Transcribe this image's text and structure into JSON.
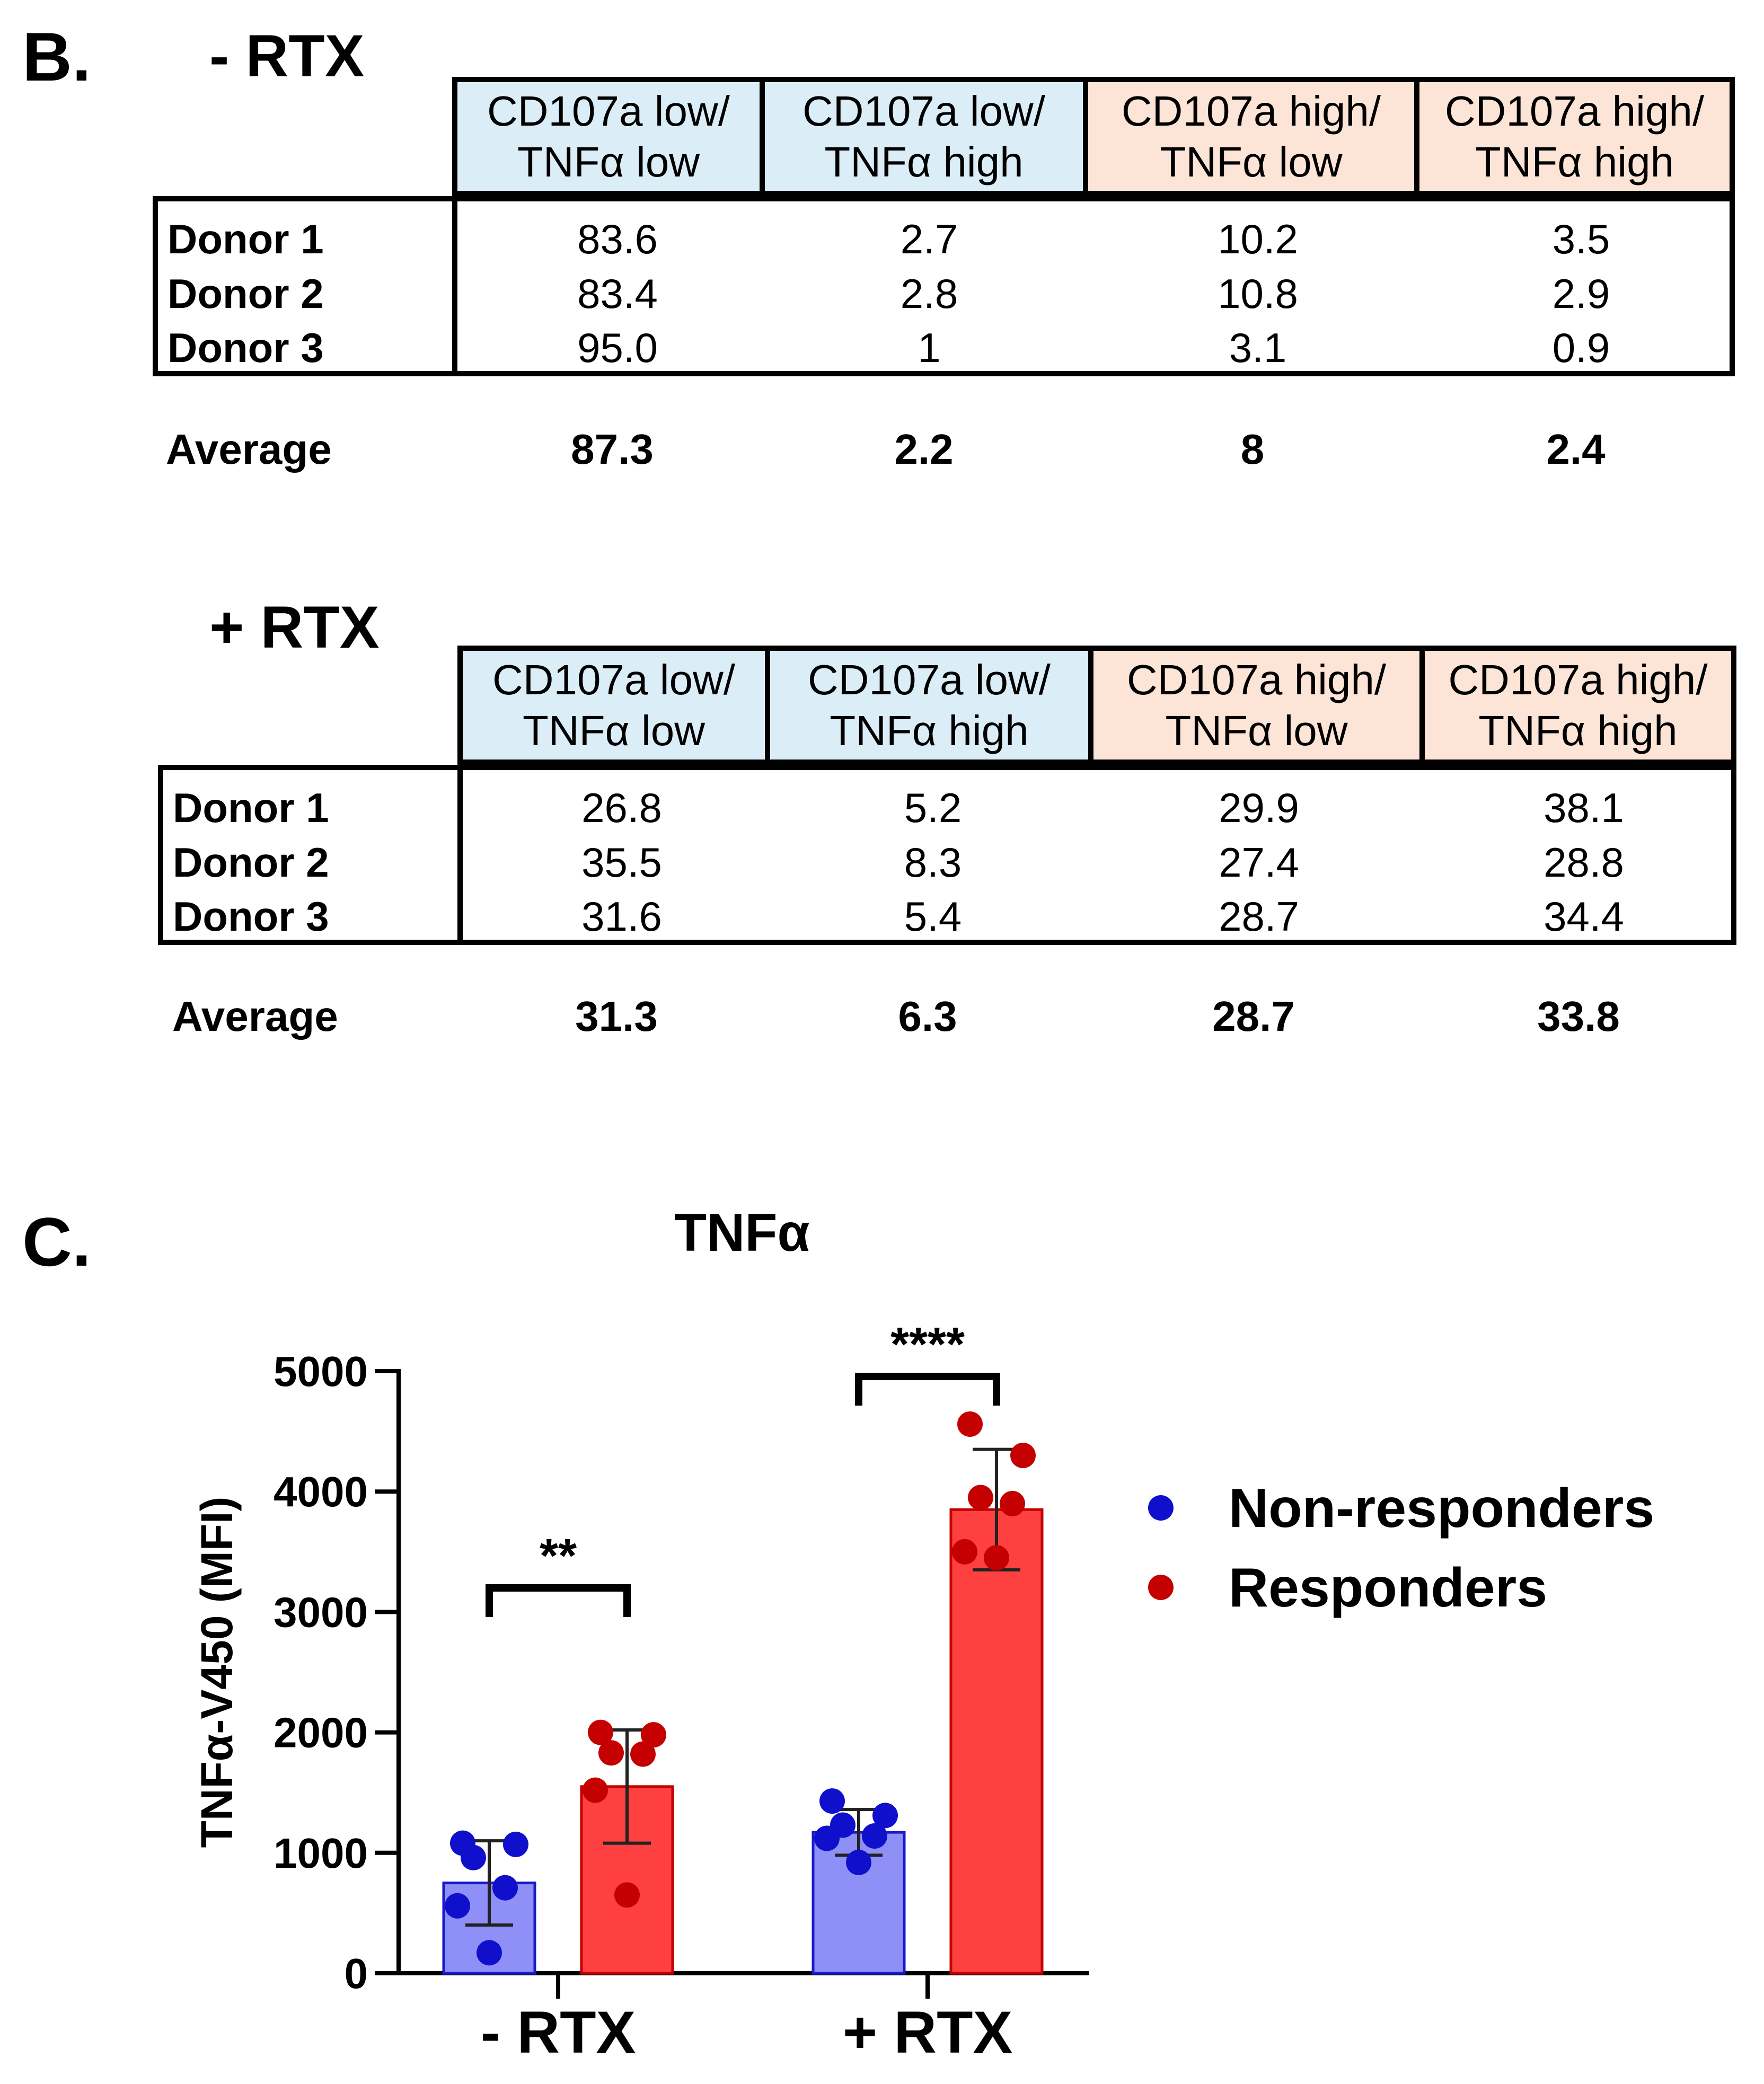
{
  "panels": {
    "b_label": "B.",
    "c_label": "C."
  },
  "tables": [
    {
      "title": "- RTX",
      "headers": [
        {
          "line1": "CD107a low/",
          "line2": "TNFα low"
        },
        {
          "line1": "CD107a low/",
          "line2": "TNFα high"
        },
        {
          "line1": "CD107a high/",
          "line2": "TNFα low"
        },
        {
          "line1": "CD107a high/",
          "line2": "TNFα high"
        }
      ],
      "rows": [
        {
          "label": "Donor 1",
          "values": [
            "83.6",
            "2.7",
            "10.2",
            "3.5"
          ]
        },
        {
          "label": "Donor 2",
          "values": [
            "83.4",
            "2.8",
            "10.8",
            "2.9"
          ]
        },
        {
          "label": "Donor 3",
          "values": [
            "95.0",
            "1",
            "3.1",
            "0.9"
          ]
        }
      ],
      "average": {
        "label": "Average",
        "values": [
          "87.3",
          "2.2",
          "8",
          "2.4"
        ]
      }
    },
    {
      "title": "+ RTX",
      "headers": [
        {
          "line1": "CD107a low/",
          "line2": "TNFα low"
        },
        {
          "line1": "CD107a low/",
          "line2": "TNFα high"
        },
        {
          "line1": "CD107a high/",
          "line2": "TNFα low"
        },
        {
          "line1": "CD107a high/",
          "line2": "TNFα high"
        }
      ],
      "rows": [
        {
          "label": "Donor 1",
          "values": [
            "26.8",
            "5.2",
            "29.9",
            "38.1"
          ]
        },
        {
          "label": "Donor 2",
          "values": [
            "35.5",
            "8.3",
            "27.4",
            "28.8"
          ]
        },
        {
          "label": "Donor 3",
          "values": [
            "31.6",
            "5.4",
            "28.7",
            "34.4"
          ]
        }
      ],
      "average": {
        "label": "Average",
        "values": [
          "31.3",
          "6.3",
          "28.7",
          "33.8"
        ]
      }
    }
  ],
  "colors": {
    "header_blue": "#dbeef7",
    "header_peach": "#fce4d6",
    "nonresponder_bar": "#8f8ff8",
    "nonresponder_dot": "#1010cc",
    "responder_bar": "#ff4040",
    "responder_dot": "#c40000"
  },
  "chart_data": {
    "type": "bar",
    "title": "TNFα",
    "ylabel": "TNFα-V450 (MFI)",
    "xlabel": "",
    "ylim": [
      0,
      5000
    ],
    "yticks": [
      0,
      1000,
      2000,
      3000,
      4000,
      5000
    ],
    "categories": [
      "- RTX",
      "+ RTX"
    ],
    "series": [
      {
        "name": "Non-responders",
        "values": [
          750,
          1170
        ],
        "sd": [
          350,
          190
        ],
        "points": [
          [
            1080,
            1070,
            960,
            710,
            560,
            170
          ],
          [
            1430,
            1310,
            1230,
            1140,
            1120,
            920
          ]
        ]
      },
      {
        "name": "Responders",
        "values": [
          1550,
          3850
        ],
        "sd": [
          470,
          500
        ],
        "points": [
          [
            2000,
            1980,
            1830,
            1820,
            1520,
            650
          ],
          [
            4560,
            4300,
            3950,
            3900,
            3500,
            3450
          ]
        ]
      }
    ],
    "significance": [
      {
        "category": "- RTX",
        "label": "**"
      },
      {
        "category": "+ RTX",
        "label": "****"
      }
    ],
    "legend": {
      "position": "right"
    }
  }
}
